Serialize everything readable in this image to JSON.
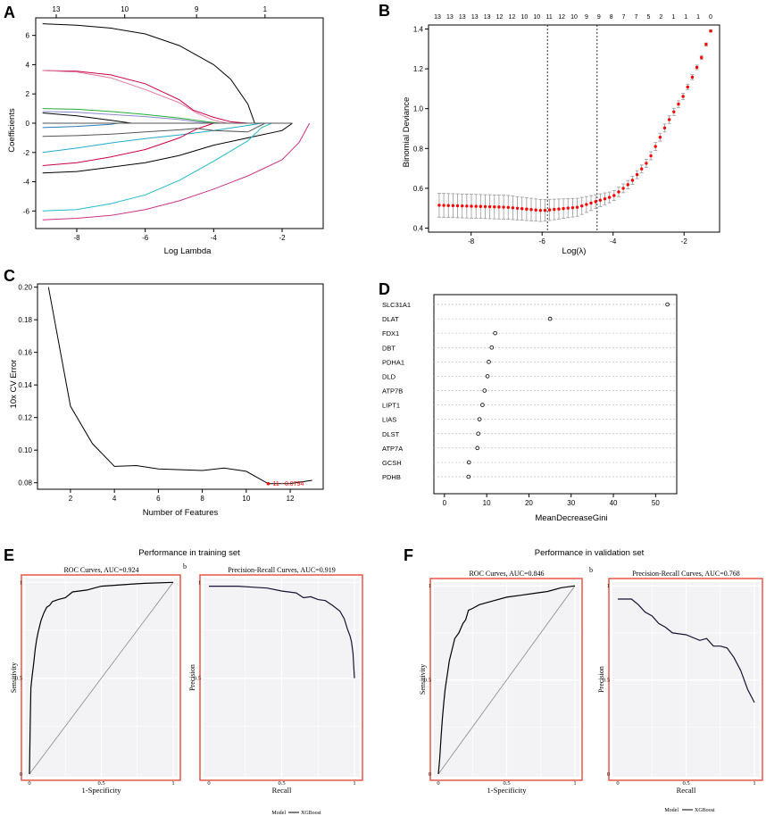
{
  "panels": {
    "a": "A",
    "b": "B",
    "c": "C",
    "d": "D",
    "e": "E",
    "f": "F"
  },
  "chart_data": [
    {
      "id": "A",
      "type": "line",
      "title": "",
      "xlabel": "Log Lambda",
      "ylabel": "Coefficients",
      "xlim": [
        -9.2,
        -0.8
      ],
      "ylim": [
        -7.2,
        7.2
      ],
      "xticks": [
        -8,
        -6,
        -4,
        -2
      ],
      "yticks": [
        -6,
        -4,
        -2,
        0,
        2,
        4,
        6
      ],
      "top_ticks": {
        "at": [
          -8.6,
          -6.6,
          -4.5,
          -2.5
        ],
        "labels": [
          "13",
          "10",
          "9",
          "1"
        ]
      },
      "series": [
        {
          "name": "g1",
          "color": "#000000",
          "x": [
            -9,
            -8,
            -7,
            -6,
            -5,
            -4,
            -3.5,
            -3,
            -2.8
          ],
          "y": [
            6.8,
            6.7,
            6.5,
            6.1,
            5.3,
            4.0,
            3.0,
            1.3,
            0
          ]
        },
        {
          "name": "g2",
          "color": "#cc0044",
          "x": [
            -9,
            -8,
            -7,
            -6,
            -5,
            -4.6,
            -4,
            -3.5,
            -3
          ],
          "y": [
            3.6,
            3.55,
            3.3,
            2.7,
            1.6,
            0.9,
            0.4,
            0.1,
            0
          ]
        },
        {
          "name": "g3",
          "color": "#e07aa0",
          "x": [
            -9,
            -8,
            -7,
            -6,
            -5,
            -4.5,
            -4,
            -3.6
          ],
          "y": [
            3.6,
            3.5,
            3.1,
            2.3,
            1.4,
            0.7,
            0.2,
            0
          ]
        },
        {
          "name": "g4",
          "color": "#22aa33",
          "x": [
            -9,
            -8,
            -7,
            -6,
            -5,
            -4.2,
            -3.8
          ],
          "y": [
            1.0,
            0.95,
            0.8,
            0.6,
            0.35,
            0.1,
            0
          ]
        },
        {
          "name": "g5",
          "color": "#8888cc",
          "x": [
            -9,
            -8,
            -7,
            -6,
            -5,
            -4.5,
            -4
          ],
          "y": [
            0.8,
            0.75,
            0.6,
            0.45,
            0.25,
            0.1,
            0
          ]
        },
        {
          "name": "g6",
          "color": "#2a7ab8",
          "x": [
            -9,
            -8,
            -7,
            -6.8
          ],
          "y": [
            -0.3,
            -0.22,
            -0.08,
            0
          ]
        },
        {
          "name": "g7",
          "color": "#000000",
          "x": [
            -9,
            -8,
            -7,
            -6.4
          ],
          "y": [
            0.7,
            0.5,
            0.2,
            0
          ]
        },
        {
          "name": "g8",
          "color": "#22aacc",
          "x": [
            -9,
            -8,
            -7,
            -6,
            -5,
            -4,
            -3,
            -2.6
          ],
          "y": [
            -2.0,
            -1.7,
            -1.35,
            -1.05,
            -0.8,
            -0.5,
            -0.15,
            0
          ]
        },
        {
          "name": "g9",
          "color": "#cc0044",
          "x": [
            -9,
            -8,
            -7,
            -6,
            -5,
            -4.5,
            -4
          ],
          "y": [
            -2.9,
            -2.7,
            -2.3,
            -1.8,
            -1.0,
            -0.4,
            0
          ]
        },
        {
          "name": "g10",
          "color": "#555555",
          "x": [
            -9,
            -8,
            -7,
            -6,
            -5,
            -4.5,
            -4,
            -3,
            -2.5
          ],
          "y": [
            -0.9,
            -0.85,
            -0.75,
            -0.6,
            -0.45,
            -0.35,
            -0.5,
            -0.6,
            0
          ]
        },
        {
          "name": "g11",
          "color": "#000000",
          "x": [
            -9,
            -8,
            -7,
            -6,
            -5,
            -4,
            -3,
            -2,
            -1.7
          ],
          "y": [
            -3.4,
            -3.3,
            -3.0,
            -2.7,
            -2.2,
            -1.5,
            -1.0,
            -0.5,
            0
          ]
        },
        {
          "name": "g12",
          "color": "#22bbcc",
          "x": [
            -9,
            -8,
            -7,
            -6,
            -5,
            -4,
            -3,
            -2.6,
            -2.3
          ],
          "y": [
            -6.0,
            -5.9,
            -5.5,
            -4.9,
            -3.9,
            -2.6,
            -1.2,
            -0.3,
            0
          ]
        },
        {
          "name": "g13",
          "color": "#cc3388",
          "x": [
            -9,
            -8,
            -7,
            -6,
            -5,
            -4,
            -3,
            -2,
            -1.5,
            -1.2
          ],
          "y": [
            -6.6,
            -6.5,
            -6.3,
            -5.9,
            -5.3,
            -4.5,
            -3.6,
            -2.5,
            -1.3,
            0
          ]
        },
        {
          "name": "g14",
          "color": "#555555",
          "x": [
            -9,
            -4,
            -3,
            -2.5,
            -1.7
          ],
          "y": [
            0,
            0,
            0,
            0,
            0
          ]
        }
      ]
    },
    {
      "id": "B",
      "type": "scatter",
      "xlabel": "Log(λ)",
      "ylabel": "Binomial Deviance",
      "xlim": [
        -9.2,
        -1.0
      ],
      "ylim": [
        0.38,
        1.42
      ],
      "xticks": [
        -8,
        -6,
        -4,
        -2
      ],
      "yticks": [
        0.4,
        0.6,
        0.8,
        1.0,
        1.2,
        1.4
      ],
      "vlines": [
        -5.85,
        -4.45
      ],
      "top_ticks": {
        "labels": [
          "13",
          "13",
          "13",
          "13",
          "13",
          "12",
          "12",
          "10",
          "10",
          "11",
          "12",
          "10",
          "9",
          "9",
          "8",
          "7",
          "7",
          "5",
          "2",
          "1",
          "1",
          "1",
          "0"
        ]
      },
      "points": {
        "x_start": -8.9,
        "x_end": -1.25,
        "count": 60,
        "key_x": [
          -8.9,
          -7,
          -6,
          -5,
          -4,
          -3.5,
          -3,
          -2.5,
          -2,
          -1.5,
          -1.25
        ],
        "key_y": [
          0.515,
          0.505,
          0.488,
          0.505,
          0.56,
          0.63,
          0.74,
          0.92,
          1.07,
          1.26,
          1.39
        ],
        "err_key_y": [
          0.06,
          0.06,
          0.055,
          0.045,
          0.025,
          0.02,
          0.02,
          0.02,
          0.015,
          0.01,
          0.005
        ],
        "color": "#ff0000",
        "err_color": "#999999"
      }
    },
    {
      "id": "C",
      "type": "line",
      "xlabel": "Number of Features",
      "ylabel": "10x CV Error",
      "xlim": [
        0.5,
        13.5
      ],
      "ylim": [
        0.076,
        0.202
      ],
      "xticks": [
        2,
        4,
        6,
        8,
        10,
        12
      ],
      "yticks": [
        0.08,
        0.1,
        0.12,
        0.14,
        0.16,
        0.18,
        0.2
      ],
      "x": [
        1,
        2,
        3,
        4,
        5,
        6,
        7,
        8,
        9,
        10,
        11,
        12,
        13
      ],
      "y": [
        0.2,
        0.127,
        0.104,
        0.09,
        0.0905,
        0.0885,
        0.088,
        0.0875,
        0.089,
        0.087,
        0.0794,
        0.0795,
        0.0815
      ],
      "annotation": {
        "x": 11,
        "y": 0.0794,
        "text": "11 - 0.0794"
      }
    },
    {
      "id": "D",
      "type": "scatter",
      "xlabel": "MeanDecreaseGini",
      "xlim": [
        -2.5,
        55
      ],
      "xticks": [
        0,
        10,
        20,
        30,
        40,
        50
      ],
      "categories": [
        "SLC31A1",
        "DLAT",
        "FDX1",
        "DBT",
        "PDHA1",
        "DLD",
        "ATP7B",
        "LIPT1",
        "LIAS",
        "DLST",
        "ATP7A",
        "GCSH",
        "PDHB"
      ],
      "values": [
        52.8,
        25.0,
        12.0,
        11.2,
        10.5,
        10.2,
        9.5,
        9.0,
        8.3,
        8.0,
        7.8,
        5.8,
        5.7
      ]
    },
    {
      "id": "E",
      "type": "line",
      "title": "Performance in training set",
      "roc": {
        "title": "ROC Curves, AUC=0.924",
        "xlabel": "1-Specificity",
        "ylabel": "Sensitivity",
        "xticks": [
          0,
          0.5,
          1
        ],
        "xtick_labels": [
          "0",
          "0.5",
          "1"
        ],
        "yticks": [
          0,
          0.5,
          1
        ],
        "ytick_labels": [
          "0",
          "0.5",
          "1"
        ],
        "x": [
          0,
          0.005,
          0.01,
          0.02,
          0.03,
          0.04,
          0.05,
          0.06,
          0.07,
          0.08,
          0.1,
          0.12,
          0.14,
          0.16,
          0.2,
          0.25,
          0.3,
          0.4,
          0.45,
          0.5,
          0.6,
          0.7,
          0.8,
          1.0
        ],
        "y": [
          0,
          0.25,
          0.45,
          0.52,
          0.58,
          0.65,
          0.7,
          0.74,
          0.77,
          0.8,
          0.84,
          0.87,
          0.88,
          0.9,
          0.91,
          0.92,
          0.95,
          0.96,
          0.97,
          0.98,
          0.985,
          0.99,
          0.995,
          1.0
        ]
      },
      "pr": {
        "title": "Precision-Recall Curves, AUC=0.919",
        "xlabel": "Recall",
        "ylabel": "Precision",
        "xticks": [
          0,
          0.5,
          1
        ],
        "xtick_labels": [
          "0",
          "0.5",
          "1"
        ],
        "yticks": [
          0.5,
          1
        ],
        "ytick_labels": [
          "0.5",
          "1"
        ],
        "ylim": [
          0,
          1.02
        ],
        "x": [
          0,
          0.05,
          0.1,
          0.2,
          0.3,
          0.4,
          0.5,
          0.6,
          0.65,
          0.7,
          0.75,
          0.8,
          0.85,
          0.9,
          0.93,
          0.95,
          0.97,
          0.98,
          0.99,
          1.0
        ],
        "y": [
          0.98,
          0.98,
          0.98,
          0.98,
          0.975,
          0.97,
          0.955,
          0.945,
          0.92,
          0.925,
          0.91,
          0.905,
          0.88,
          0.85,
          0.81,
          0.76,
          0.72,
          0.69,
          0.63,
          0.5
        ]
      },
      "legend": {
        "title": "Model",
        "entry": "XGBoost"
      },
      "sublabel": "b"
    },
    {
      "id": "F",
      "type": "line",
      "title": "Performance in validation set",
      "roc": {
        "title": "ROC Curves, AUC=0.846",
        "xlabel": "1-Specificity",
        "ylabel": "Sensitivity",
        "xticks": [
          0,
          0.5,
          1
        ],
        "xtick_labels": [
          "0",
          "0.5",
          "1"
        ],
        "yticks": [
          0,
          0.5,
          1
        ],
        "ytick_labels": [
          "0",
          "0.5",
          "1"
        ],
        "x": [
          0,
          0.01,
          0.02,
          0.03,
          0.04,
          0.05,
          0.07,
          0.08,
          0.1,
          0.12,
          0.15,
          0.18,
          0.2,
          0.22,
          0.25,
          0.3,
          0.4,
          0.5,
          0.6,
          0.7,
          0.8,
          0.9,
          1.0
        ],
        "y": [
          0,
          0.08,
          0.2,
          0.3,
          0.38,
          0.45,
          0.55,
          0.6,
          0.66,
          0.72,
          0.75,
          0.8,
          0.82,
          0.87,
          0.88,
          0.9,
          0.92,
          0.94,
          0.95,
          0.96,
          0.97,
          0.99,
          1.0
        ]
      },
      "pr": {
        "title": "Precision-Recall Curves, AUC=0.768",
        "xlabel": "Recall",
        "ylabel": "Precision",
        "xticks": [
          0,
          0.5,
          1
        ],
        "xtick_labels": [
          "0",
          "0.5",
          "1"
        ],
        "yticks": [
          0,
          0.5,
          1
        ],
        "ytick_labels": [
          "0",
          "0.5",
          "1"
        ],
        "ylim": [
          0,
          1.02
        ],
        "x": [
          0,
          0.05,
          0.1,
          0.15,
          0.2,
          0.25,
          0.3,
          0.35,
          0.4,
          0.5,
          0.6,
          0.65,
          0.7,
          0.75,
          0.8,
          0.85,
          0.9,
          0.95,
          1.0
        ],
        "y": [
          0.93,
          0.93,
          0.93,
          0.9,
          0.86,
          0.84,
          0.8,
          0.78,
          0.75,
          0.74,
          0.71,
          0.72,
          0.68,
          0.68,
          0.67,
          0.62,
          0.55,
          0.45,
          0.38
        ]
      },
      "legend": {
        "title": "Model",
        "entry": "XGBoost"
      },
      "sublabel": "b"
    }
  ]
}
